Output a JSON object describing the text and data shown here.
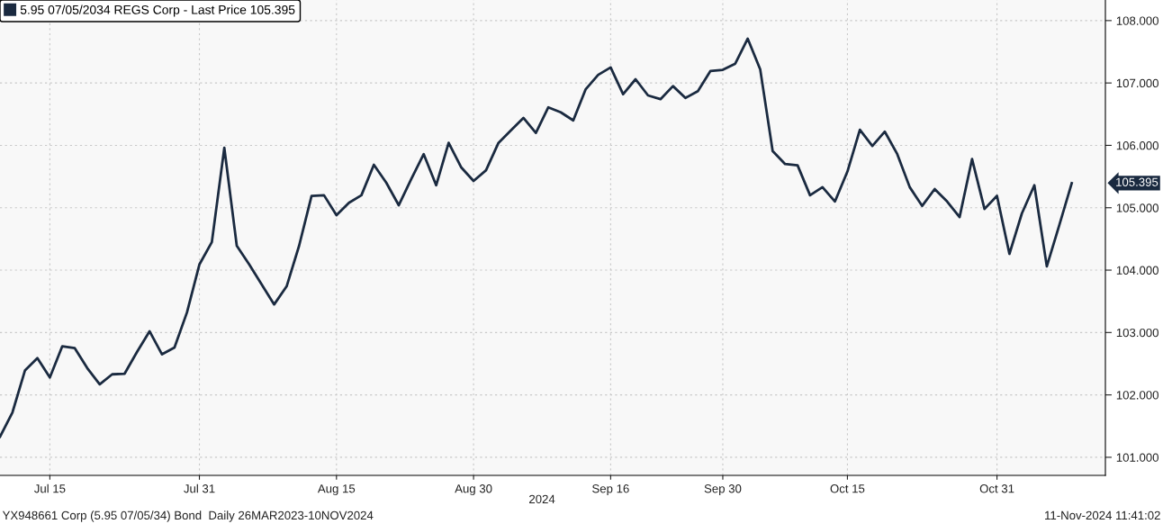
{
  "chart_data": {
    "type": "line",
    "categories": [
      null,
      null,
      null,
      null,
      "Jul 15",
      null,
      null,
      null,
      null,
      null,
      null,
      null,
      null,
      null,
      null,
      null,
      "Jul 31",
      null,
      null,
      null,
      null,
      null,
      null,
      null,
      null,
      null,
      null,
      "Aug 15",
      null,
      null,
      null,
      null,
      null,
      null,
      null,
      null,
      null,
      null,
      "Aug 30",
      null,
      null,
      null,
      null,
      null,
      null,
      null,
      null,
      null,
      null,
      "Sep 16",
      null,
      null,
      null,
      null,
      null,
      null,
      null,
      null,
      "Sep 30",
      null,
      null,
      null,
      null,
      null,
      null,
      null,
      null,
      null,
      "Oct 15",
      null,
      null,
      null,
      null,
      null,
      null,
      null,
      null,
      null,
      null,
      null,
      "Oct 31",
      null,
      null,
      null,
      null,
      null,
      null
    ],
    "series": [
      {
        "name": "5.95 07/05/2034 REGS Corp - Last Price 105.395",
        "color": "#1a2a40",
        "values": [
          101.33,
          101.72,
          102.39,
          102.59,
          102.28,
          102.78,
          102.75,
          102.43,
          102.17,
          102.33,
          102.34,
          102.69,
          103.02,
          102.65,
          102.76,
          103.32,
          104.09,
          104.45,
          105.96,
          104.39,
          104.09,
          103.77,
          103.45,
          103.74,
          104.39,
          105.19,
          105.2,
          104.88,
          105.08,
          105.2,
          105.69,
          105.4,
          105.04,
          105.46,
          105.86,
          105.36,
          106.04,
          105.65,
          105.43,
          105.6,
          106.04,
          106.24,
          106.44,
          106.2,
          106.61,
          106.53,
          106.4,
          106.9,
          107.13,
          107.25,
          106.82,
          107.06,
          106.8,
          106.74,
          106.95,
          106.76,
          106.87,
          107.19,
          107.21,
          107.31,
          107.71,
          107.22,
          105.91,
          105.7,
          105.68,
          105.2,
          105.33,
          105.1,
          105.58,
          106.25,
          105.99,
          106.22,
          105.86,
          105.33,
          105.03,
          105.3,
          105.1,
          104.85,
          105.78,
          104.98,
          105.19,
          104.26,
          104.91,
          105.36,
          104.06,
          104.72,
          105.395
        ]
      }
    ],
    "ylim": [
      100.71,
      108.33
    ],
    "yticks": [
      {
        "value": 101,
        "label": "101.000"
      },
      {
        "value": 102,
        "label": "102.000"
      },
      {
        "value": 103,
        "label": "103.000"
      },
      {
        "value": 104,
        "label": "104.000"
      },
      {
        "value": 105,
        "label": "105.000"
      },
      {
        "value": 106,
        "label": "106.000"
      },
      {
        "value": 107,
        "label": "107.000"
      },
      {
        "value": 108,
        "label": "108.000"
      }
    ],
    "grid": true,
    "legend": "top left",
    "marker": "none",
    "line_style": "solid",
    "annotations": [
      "105.395",
      "2024",
      "YX948661 Corp (5.95 07/05/34) Bond  Daily 26MAR2023-10NOV2024",
      "11-Nov-2024 11:41:02"
    ]
  }
}
